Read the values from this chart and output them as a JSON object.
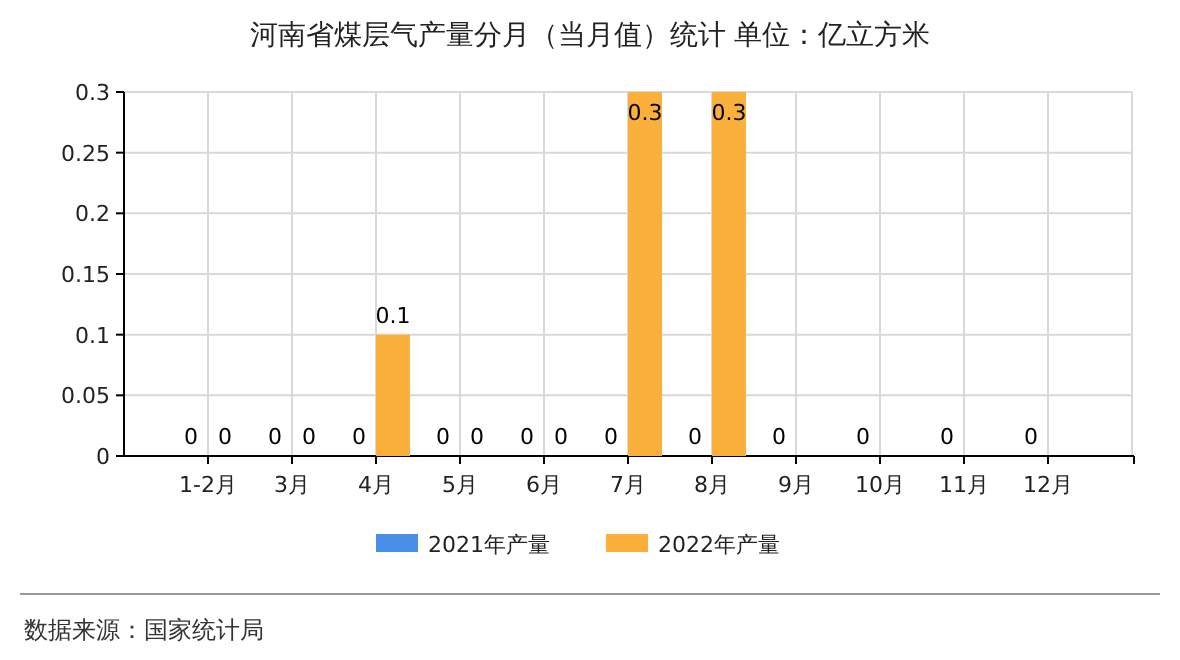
{
  "chart_data": {
    "type": "bar",
    "title": "河南省煤层气产量分月（当月值）统计 单位：亿立方米",
    "categories": [
      "1-2月",
      "3月",
      "4月",
      "5月",
      "6月",
      "7月",
      "8月",
      "9月",
      "10月",
      "11月",
      "12月"
    ],
    "series": [
      {
        "name": "2021年产量",
        "color": "#4a8fe7",
        "values": [
          0,
          0,
          0,
          0,
          0,
          0,
          0,
          0,
          0,
          0,
          0
        ]
      },
      {
        "name": "2022年产量",
        "color": "#fbb03b",
        "values": [
          0,
          0,
          0.1,
          0,
          0,
          0.3,
          0.3,
          null,
          null,
          null,
          null
        ]
      }
    ],
    "ylim": [
      0,
      0.3
    ],
    "yticks": [
      0,
      0.05,
      0.1,
      0.15,
      0.2,
      0.25,
      0.3
    ],
    "grid": true,
    "legend": "bottom",
    "data_labels": true,
    "annotations": [
      "数据来源：国家统计局"
    ]
  }
}
